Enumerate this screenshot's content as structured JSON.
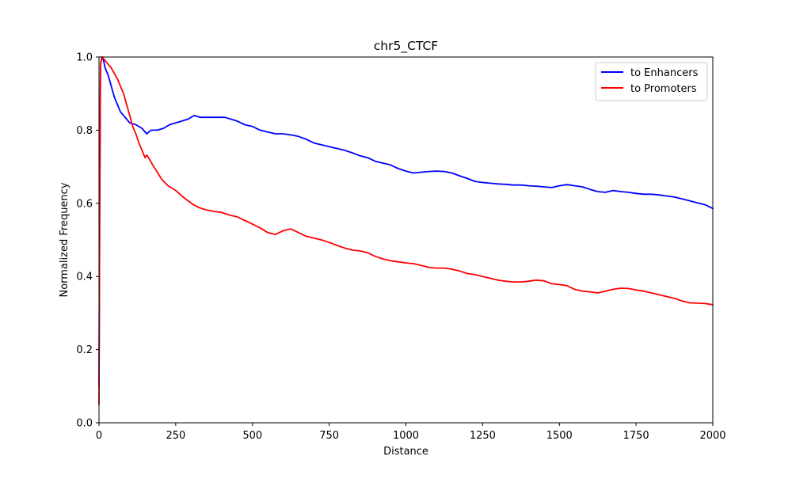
{
  "chart_data": {
    "type": "line",
    "title": "chr5_CTCF",
    "xlabel": "Distance",
    "ylabel": "Normalized Frequency",
    "xlim": [
      0,
      2000
    ],
    "ylim": [
      0.0,
      1.0
    ],
    "x_ticks": [
      "0",
      "250",
      "500",
      "750",
      "1000",
      "1250",
      "1500",
      "1750",
      "2000"
    ],
    "y_ticks": [
      "0.0",
      "0.2",
      "0.4",
      "0.6",
      "0.8",
      "1.0"
    ],
    "grid": false,
    "legend_position": "top-right",
    "series": [
      {
        "name": "to Enhancers",
        "color": "#0000ff",
        "points": [
          [
            0,
            0.1
          ],
          [
            2,
            0.55
          ],
          [
            5,
            0.98
          ],
          [
            10,
            1.0
          ],
          [
            15,
            0.99
          ],
          [
            20,
            0.97
          ],
          [
            30,
            0.95
          ],
          [
            40,
            0.92
          ],
          [
            50,
            0.89
          ],
          [
            60,
            0.87
          ],
          [
            70,
            0.85
          ],
          [
            80,
            0.84
          ],
          [
            90,
            0.83
          ],
          [
            100,
            0.82
          ],
          [
            120,
            0.815
          ],
          [
            140,
            0.805
          ],
          [
            155,
            0.79
          ],
          [
            170,
            0.8
          ],
          [
            190,
            0.8
          ],
          [
            210,
            0.805
          ],
          [
            230,
            0.815
          ],
          [
            250,
            0.82
          ],
          [
            270,
            0.825
          ],
          [
            290,
            0.83
          ],
          [
            310,
            0.84
          ],
          [
            330,
            0.835
          ],
          [
            350,
            0.835
          ],
          [
            370,
            0.835
          ],
          [
            390,
            0.835
          ],
          [
            410,
            0.835
          ],
          [
            430,
            0.83
          ],
          [
            450,
            0.825
          ],
          [
            475,
            0.815
          ],
          [
            500,
            0.81
          ],
          [
            525,
            0.8
          ],
          [
            550,
            0.795
          ],
          [
            575,
            0.79
          ],
          [
            600,
            0.79
          ],
          [
            625,
            0.787
          ],
          [
            650,
            0.783
          ],
          [
            675,
            0.775
          ],
          [
            700,
            0.765
          ],
          [
            725,
            0.76
          ],
          [
            750,
            0.755
          ],
          [
            775,
            0.75
          ],
          [
            800,
            0.745
          ],
          [
            825,
            0.738
          ],
          [
            850,
            0.73
          ],
          [
            875,
            0.725
          ],
          [
            900,
            0.715
          ],
          [
            925,
            0.71
          ],
          [
            950,
            0.705
          ],
          [
            975,
            0.695
          ],
          [
            1000,
            0.688
          ],
          [
            1025,
            0.683
          ],
          [
            1050,
            0.685
          ],
          [
            1075,
            0.687
          ],
          [
            1100,
            0.688
          ],
          [
            1125,
            0.687
          ],
          [
            1150,
            0.683
          ],
          [
            1175,
            0.675
          ],
          [
            1200,
            0.668
          ],
          [
            1225,
            0.66
          ],
          [
            1250,
            0.657
          ],
          [
            1275,
            0.655
          ],
          [
            1300,
            0.653
          ],
          [
            1325,
            0.652
          ],
          [
            1350,
            0.65
          ],
          [
            1375,
            0.65
          ],
          [
            1400,
            0.648
          ],
          [
            1425,
            0.647
          ],
          [
            1450,
            0.645
          ],
          [
            1475,
            0.643
          ],
          [
            1500,
            0.648
          ],
          [
            1525,
            0.651
          ],
          [
            1550,
            0.648
          ],
          [
            1575,
            0.645
          ],
          [
            1600,
            0.638
          ],
          [
            1625,
            0.632
          ],
          [
            1650,
            0.63
          ],
          [
            1675,
            0.635
          ],
          [
            1700,
            0.632
          ],
          [
            1725,
            0.63
          ],
          [
            1750,
            0.627
          ],
          [
            1775,
            0.625
          ],
          [
            1800,
            0.625
          ],
          [
            1825,
            0.623
          ],
          [
            1850,
            0.62
          ],
          [
            1875,
            0.617
          ],
          [
            1900,
            0.612
          ],
          [
            1925,
            0.607
          ],
          [
            1950,
            0.601
          ],
          [
            1975,
            0.596
          ],
          [
            2000,
            0.586
          ]
        ]
      },
      {
        "name": "to Promoters",
        "color": "#ff0000",
        "points": [
          [
            0,
            0.05
          ],
          [
            2,
            0.55
          ],
          [
            5,
            0.98
          ],
          [
            10,
            1.0
          ],
          [
            20,
            0.99
          ],
          [
            30,
            0.98
          ],
          [
            35,
            0.975
          ],
          [
            40,
            0.97
          ],
          [
            50,
            0.955
          ],
          [
            60,
            0.94
          ],
          [
            70,
            0.92
          ],
          [
            80,
            0.9
          ],
          [
            90,
            0.87
          ],
          [
            100,
            0.84
          ],
          [
            110,
            0.81
          ],
          [
            120,
            0.79
          ],
          [
            130,
            0.765
          ],
          [
            140,
            0.745
          ],
          [
            150,
            0.725
          ],
          [
            155,
            0.732
          ],
          [
            165,
            0.72
          ],
          [
            175,
            0.705
          ],
          [
            190,
            0.685
          ],
          [
            205,
            0.665
          ],
          [
            225,
            0.648
          ],
          [
            250,
            0.635
          ],
          [
            270,
            0.62
          ],
          [
            290,
            0.607
          ],
          [
            310,
            0.595
          ],
          [
            330,
            0.587
          ],
          [
            350,
            0.582
          ],
          [
            375,
            0.578
          ],
          [
            400,
            0.575
          ],
          [
            425,
            0.568
          ],
          [
            450,
            0.563
          ],
          [
            475,
            0.553
          ],
          [
            500,
            0.543
          ],
          [
            525,
            0.533
          ],
          [
            550,
            0.52
          ],
          [
            575,
            0.515
          ],
          [
            600,
            0.525
          ],
          [
            625,
            0.53
          ],
          [
            650,
            0.52
          ],
          [
            675,
            0.51
          ],
          [
            700,
            0.505
          ],
          [
            725,
            0.5
          ],
          [
            750,
            0.493
          ],
          [
            775,
            0.485
          ],
          [
            800,
            0.478
          ],
          [
            825,
            0.472
          ],
          [
            850,
            0.47
          ],
          [
            875,
            0.465
          ],
          [
            900,
            0.455
          ],
          [
            925,
            0.448
          ],
          [
            950,
            0.443
          ],
          [
            975,
            0.44
          ],
          [
            1000,
            0.437
          ],
          [
            1025,
            0.435
          ],
          [
            1050,
            0.43
          ],
          [
            1075,
            0.425
          ],
          [
            1100,
            0.423
          ],
          [
            1125,
            0.423
          ],
          [
            1150,
            0.42
          ],
          [
            1175,
            0.415
          ],
          [
            1200,
            0.408
          ],
          [
            1225,
            0.405
          ],
          [
            1250,
            0.4
          ],
          [
            1275,
            0.395
          ],
          [
            1300,
            0.39
          ],
          [
            1325,
            0.387
          ],
          [
            1350,
            0.385
          ],
          [
            1375,
            0.385
          ],
          [
            1400,
            0.387
          ],
          [
            1425,
            0.39
          ],
          [
            1450,
            0.388
          ],
          [
            1475,
            0.38
          ],
          [
            1500,
            0.378
          ],
          [
            1525,
            0.375
          ],
          [
            1550,
            0.365
          ],
          [
            1575,
            0.36
          ],
          [
            1600,
            0.358
          ],
          [
            1625,
            0.355
          ],
          [
            1650,
            0.36
          ],
          [
            1675,
            0.365
          ],
          [
            1700,
            0.368
          ],
          [
            1725,
            0.367
          ],
          [
            1750,
            0.363
          ],
          [
            1775,
            0.36
          ],
          [
            1800,
            0.355
          ],
          [
            1825,
            0.35
          ],
          [
            1850,
            0.345
          ],
          [
            1875,
            0.34
          ],
          [
            1900,
            0.333
          ],
          [
            1925,
            0.328
          ],
          [
            1950,
            0.327
          ],
          [
            1975,
            0.326
          ],
          [
            2000,
            0.323
          ]
        ]
      }
    ]
  }
}
